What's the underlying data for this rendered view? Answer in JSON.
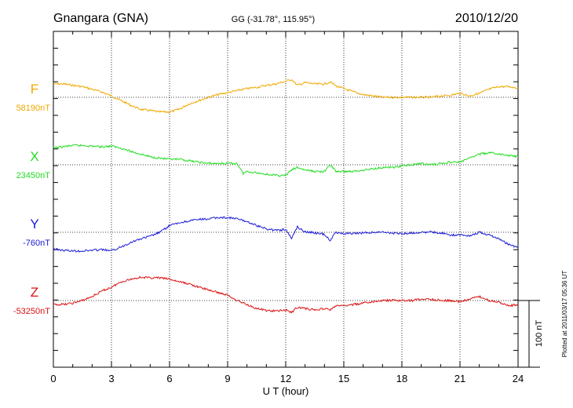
{
  "header": {
    "station": "Gnangara (GNA)",
    "coords": "GG (-31.78°, 115.95°)",
    "date": "2010/12/20"
  },
  "side_note": "Plotted at 2011/03/17 05:36 UT",
  "scale_label": "100 nT",
  "chart_data": {
    "type": "line",
    "xlabel": "U T (hour)",
    "xlim": [
      0,
      24
    ],
    "xticks": [
      0,
      3,
      6,
      9,
      12,
      15,
      18,
      21,
      24
    ],
    "scale_nT": 100,
    "grid": true,
    "series": [
      {
        "name": "F",
        "baseline_label": "58190nT",
        "baseline_nT": 58190,
        "color": "#f0a800",
        "x": [
          0,
          0.5,
          1,
          1.5,
          2,
          2.5,
          3,
          3.5,
          4,
          4.5,
          5,
          5.5,
          6,
          6.5,
          7,
          7.5,
          8,
          8.5,
          9,
          9.5,
          10,
          10.5,
          11,
          11.5,
          12,
          12.3,
          12.6,
          13,
          13.5,
          14,
          14.3,
          14.6,
          15,
          15.5,
          16,
          16.5,
          17,
          17.5,
          18,
          18.5,
          19,
          19.5,
          20,
          20.5,
          21,
          21.5,
          22,
          22.5,
          23,
          23.5,
          24
        ],
        "y": [
          58210,
          58210,
          58208,
          58206,
          58202,
          58198,
          58192,
          58185,
          58178,
          58172,
          58170,
          58168,
          58168,
          58172,
          58180,
          58185,
          58190,
          58194,
          58197,
          58200,
          58203,
          58205,
          58208,
          58210,
          58214,
          58217,
          58208,
          58212,
          58210,
          58210,
          58213,
          58207,
          58203,
          58198,
          58194,
          58192,
          58190,
          58190,
          58190,
          58190,
          58190,
          58190,
          58192,
          58193,
          58196,
          58192,
          58196,
          58202,
          58206,
          58206,
          58204
        ]
      },
      {
        "name": "X",
        "baseline_label": "23450nT",
        "baseline_nT": 23450,
        "color": "#22dd22",
        "x": [
          0,
          0.5,
          1,
          1.5,
          2,
          2.5,
          3,
          3.5,
          4,
          4.5,
          5,
          5.5,
          6,
          6.5,
          7,
          7.5,
          8,
          8.5,
          9,
          9.5,
          9.8,
          10,
          10.5,
          11,
          11.5,
          12,
          12.3,
          12.6,
          13,
          13.5,
          14,
          14.3,
          14.6,
          15,
          15.5,
          16,
          16.5,
          17,
          17.5,
          18,
          18.5,
          19,
          19.5,
          20,
          20.5,
          21,
          21.5,
          22,
          22.5,
          23,
          23.5,
          24
        ],
        "y": [
          23475,
          23477,
          23479,
          23479,
          23478,
          23477,
          23478,
          23475,
          23470,
          23466,
          23462,
          23460,
          23458,
          23458,
          23456,
          23454,
          23452,
          23452,
          23452,
          23452,
          23437,
          23440,
          23438,
          23436,
          23434,
          23434,
          23442,
          23446,
          23442,
          23440,
          23440,
          23450,
          23440,
          23440,
          23440,
          23442,
          23444,
          23446,
          23446,
          23448,
          23450,
          23452,
          23450,
          23452,
          23454,
          23454,
          23460,
          23466,
          23468,
          23466,
          23464,
          23462
        ]
      },
      {
        "name": "Y",
        "baseline_label": "-760nT",
        "baseline_nT": -760,
        "color": "#1a1ad8",
        "x": [
          0,
          0.5,
          1,
          1.5,
          2,
          2.5,
          3,
          3.5,
          4,
          4.5,
          5,
          5.5,
          6,
          6.5,
          7,
          7.5,
          8,
          8.5,
          9,
          9.5,
          10,
          10.5,
          11,
          11.5,
          12,
          12.3,
          12.6,
          13,
          13.5,
          14,
          14.3,
          14.6,
          15,
          15.5,
          16,
          16.5,
          17,
          17.5,
          18,
          18.5,
          19,
          19.5,
          20,
          20.5,
          21,
          21.5,
          22,
          22.5,
          23,
          23.5,
          24
        ],
        "y": [
          -785,
          -787,
          -788,
          -788,
          -787,
          -786,
          -788,
          -782,
          -775,
          -770,
          -766,
          -760,
          -750,
          -746,
          -743,
          -741,
          -740,
          -738,
          -738,
          -740,
          -744,
          -750,
          -755,
          -757,
          -756,
          -769,
          -752,
          -759,
          -761,
          -763,
          -772,
          -760,
          -762,
          -762,
          -761,
          -760,
          -760,
          -761,
          -762,
          -761,
          -760,
          -760,
          -761,
          -764,
          -764,
          -765,
          -760,
          -764,
          -770,
          -778,
          -783
        ]
      },
      {
        "name": "Z",
        "baseline_label": "-53250nT",
        "baseline_nT": -53250,
        "color": "#dd1111",
        "x": [
          0,
          0.5,
          1,
          1.5,
          2,
          2.5,
          3,
          3.5,
          4,
          4.5,
          5,
          5.5,
          6,
          6.5,
          7,
          7.5,
          8,
          8.5,
          9,
          9.5,
          10,
          10.5,
          11,
          11.5,
          12,
          12.3,
          12.6,
          13,
          13.5,
          14,
          14.3,
          14.6,
          15,
          15.5,
          16,
          16.5,
          17,
          17.5,
          18,
          18.5,
          19,
          19.5,
          20,
          20.5,
          21,
          21.5,
          22,
          22.5,
          23,
          23.5,
          24
        ],
        "y": [
          -53256,
          -53256,
          -53254,
          -53250,
          -53244,
          -53236,
          -53230,
          -53222,
          -53218,
          -53215,
          -53216,
          -53216,
          -53218,
          -53222,
          -53225,
          -53230,
          -53234,
          -53238,
          -53242,
          -53250,
          -53256,
          -53262,
          -53265,
          -53266,
          -53264,
          -53268,
          -53260,
          -53262,
          -53264,
          -53262,
          -53264,
          -53258,
          -53258,
          -53256,
          -53254,
          -53252,
          -53250,
          -53250,
          -53250,
          -53250,
          -53248,
          -53248,
          -53250,
          -53250,
          -53252,
          -53248,
          -53244,
          -53250,
          -53252,
          -53258,
          -53256
        ]
      }
    ]
  }
}
